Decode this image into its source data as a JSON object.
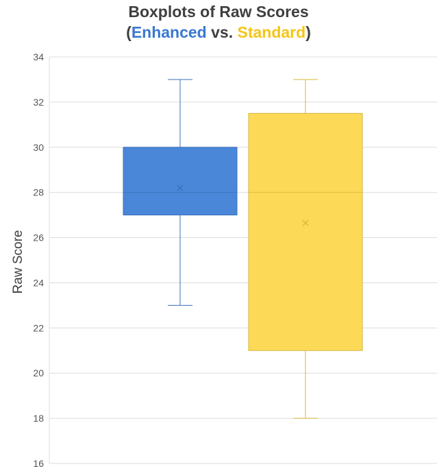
{
  "header": {
    "line1": "Boxplots of Raw Scores",
    "open_paren": "(",
    "group_a": "Enhanced",
    "vs": " vs. ",
    "group_b": "Standard",
    "close_paren": ")"
  },
  "chart_data": {
    "type": "boxplot",
    "title": "Boxplots of Raw Scores (Enhanced vs. Standard)",
    "ylabel": "Raw Score",
    "xlabel": "",
    "ylim": [
      16,
      34
    ],
    "yticks": [
      16,
      18,
      20,
      22,
      24,
      26,
      28,
      30,
      32,
      34
    ],
    "grid": true,
    "series": [
      {
        "name": "Enhanced",
        "min": 23,
        "q1": 27,
        "median": 28,
        "q3": 30,
        "max": 33,
        "mean": 28.2,
        "color": "#4a87d8",
        "stroke": "#3a6fb8"
      },
      {
        "name": "Standard",
        "min": 18,
        "q1": 21,
        "median": 28,
        "q3": 31.5,
        "max": 33,
        "mean": 26.65,
        "color": "#fdd958",
        "stroke": "#d9b43a"
      }
    ]
  }
}
